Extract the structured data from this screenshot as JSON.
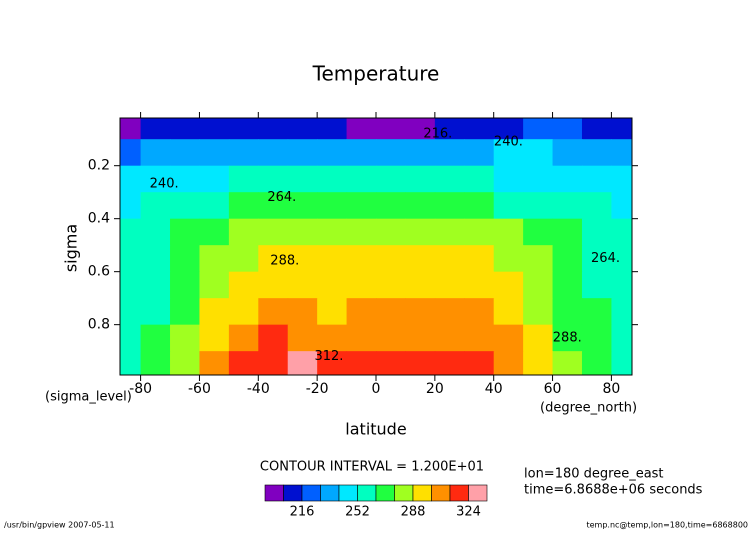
{
  "chart_data": {
    "type": "contour",
    "title": "Temperature",
    "xlabel": "latitude",
    "ylabel": "sigma",
    "xunits": "(degree_north)",
    "yunits": "(sigma_level)",
    "x": [
      -85,
      -75,
      -65,
      -55,
      -45,
      -35,
      -25,
      -15,
      -5,
      5,
      15,
      25,
      35,
      45,
      55,
      65,
      75,
      85
    ],
    "y": [
      0.05,
      0.15,
      0.25,
      0.35,
      0.45,
      0.55,
      0.65,
      0.75,
      0.85,
      0.95
    ],
    "z": [
      [
        200,
        208,
        210,
        212,
        214,
        212,
        208,
        205,
        200,
        198,
        202,
        206,
        210,
        214,
        216,
        218,
        214,
        210
      ],
      [
        226,
        228,
        230,
        232,
        234,
        236,
        236,
        234,
        232,
        230,
        232,
        234,
        236,
        240,
        244,
        236,
        230,
        228
      ],
      [
        240,
        244,
        248,
        250,
        252,
        254,
        254,
        254,
        254,
        254,
        254,
        254,
        252,
        250,
        250,
        248,
        244,
        240
      ],
      [
        248,
        252,
        258,
        262,
        265,
        266,
        266,
        266,
        266,
        266,
        266,
        266,
        264,
        262,
        260,
        256,
        252,
        248
      ],
      [
        252,
        256,
        264,
        270,
        276,
        280,
        282,
        282,
        282,
        282,
        282,
        282,
        280,
        276,
        270,
        264,
        258,
        254
      ],
      [
        254,
        258,
        266,
        276,
        284,
        289,
        290,
        290,
        288,
        289,
        290,
        290,
        290,
        284,
        276,
        268,
        262,
        256
      ],
      [
        256,
        260,
        270,
        282,
        292,
        298,
        298,
        296,
        296,
        294,
        296,
        298,
        298,
        292,
        282,
        270,
        262,
        258
      ],
      [
        258,
        262,
        274,
        288,
        298,
        304,
        302,
        298,
        302,
        304,
        304,
        306,
        304,
        298,
        286,
        272,
        264,
        260
      ],
      [
        260,
        264,
        278,
        294,
        306,
        312,
        310,
        306,
        308,
        308,
        308,
        310,
        306,
        300,
        288,
        274,
        266,
        262
      ],
      [
        262,
        266,
        282,
        300,
        314,
        322,
        326,
        318,
        312,
        312,
        312,
        316,
        314,
        302,
        290,
        276,
        266,
        262
      ]
    ],
    "xlim": [
      -87,
      87
    ],
    "ylim": [
      0.99,
      0.02
    ],
    "xticks": [
      -80,
      -60,
      -40,
      -20,
      0,
      20,
      40,
      60,
      80
    ],
    "yticks": [
      0.2,
      0.4,
      0.6,
      0.8
    ],
    "levels": [
      204,
      216,
      228,
      240,
      252,
      264,
      276,
      288,
      300,
      312,
      324
    ],
    "colors": [
      "#8000c0",
      "#0010d0",
      "#0060ff",
      "#00a8ff",
      "#00e8ff",
      "#00ffc0",
      "#20ff40",
      "#a0ff20",
      "#ffe000",
      "#ff9000",
      "#ff2a10",
      "#ffa0a8"
    ],
    "colorbar_ticks": [
      216,
      252,
      288,
      324
    ],
    "contour_interval_text": "CONTOUR INTERVAL = 1.200E+01",
    "contour_labels": [
      {
        "text": "216.",
        "x": 21,
        "y": 0.08
      },
      {
        "text": "240.",
        "x": 45,
        "y": 0.11
      },
      {
        "text": "240.",
        "x": -72,
        "y": 0.27
      },
      {
        "text": "264.",
        "x": -32,
        "y": 0.32
      },
      {
        "text": "288.",
        "x": -31,
        "y": 0.56
      },
      {
        "text": "264.",
        "x": 78,
        "y": 0.55
      },
      {
        "text": "288.",
        "x": 65,
        "y": 0.85
      },
      {
        "text": "312.",
        "x": -16,
        "y": 0.92
      }
    ],
    "notes": [
      "lon=180 degree_east",
      "time=6.8688e+06 seconds"
    ],
    "footer_left": "/usr/bin/gpview  2007-05-11",
    "footer_right": "temp.nc@temp,lon=180,time=6868800"
  }
}
